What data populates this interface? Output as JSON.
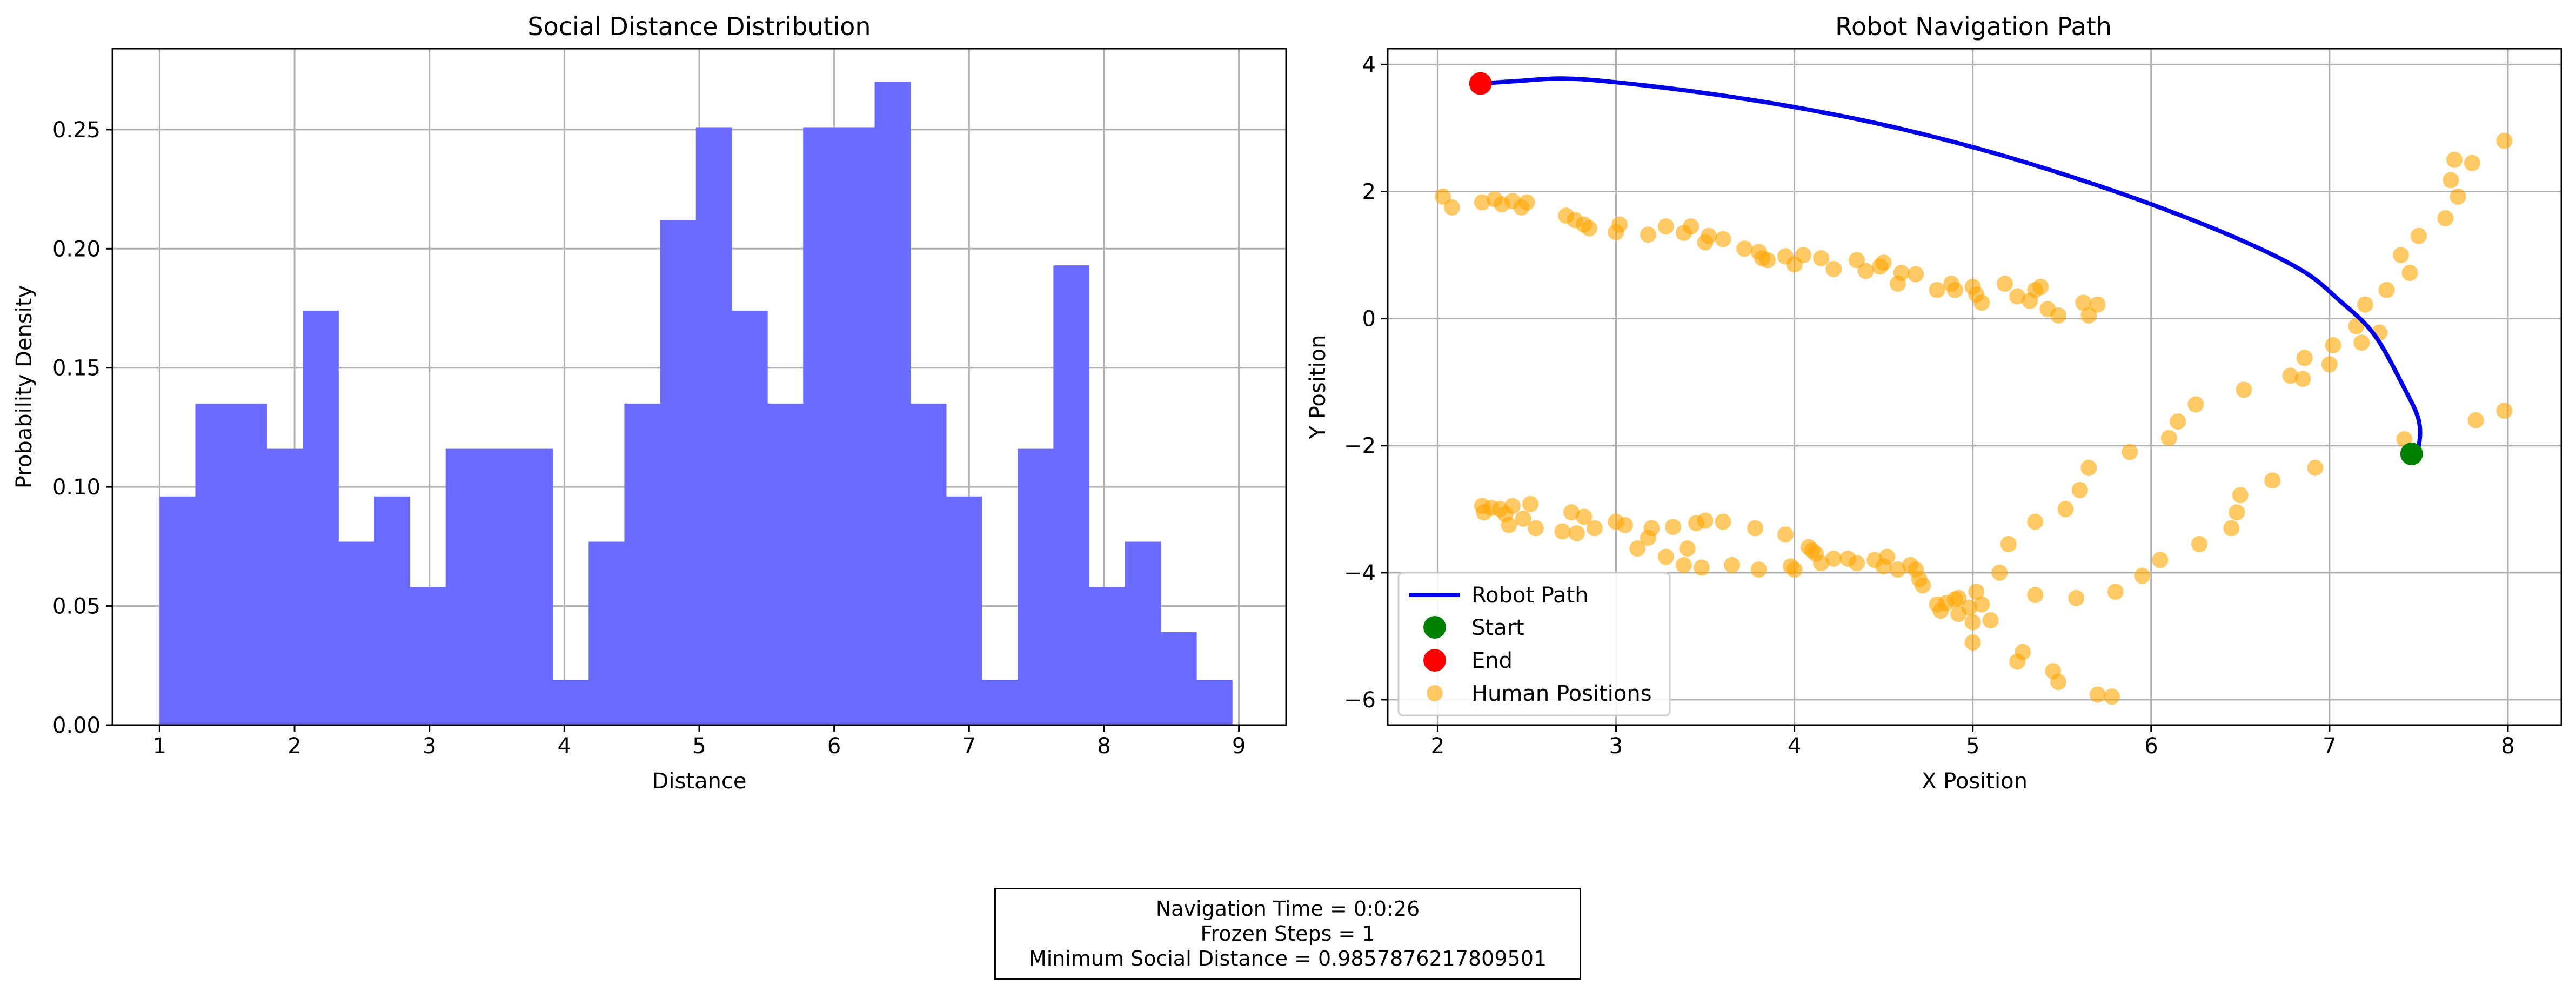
{
  "colors": {
    "hist": "#6a6aff",
    "path": "#0000e6",
    "start": "#008000",
    "end": "#ff0000",
    "human": "#ffa500",
    "grid": "#b0b0b0"
  },
  "info": {
    "navigation_time": "Navigation Time = 0:0:26",
    "frozen_steps": "Frozen Steps = 1",
    "min_social_distance": "Minimum Social Distance = 0.9857876217809501"
  },
  "chart_data": [
    {
      "type": "bar",
      "title": "Social Distance Distribution",
      "xlabel": "Distance",
      "ylabel": "Probability Density",
      "xlim": [
        0.65,
        9.35
      ],
      "ylim": [
        0,
        0.284
      ],
      "xticks": [
        1,
        2,
        3,
        4,
        5,
        6,
        7,
        8,
        9
      ],
      "xtick_labels": [
        "1",
        "2",
        "3",
        "4",
        "5",
        "6",
        "7",
        "8",
        "9"
      ],
      "yticks": [
        0,
        0.05,
        0.1,
        0.15,
        0.2,
        0.25
      ],
      "ytick_labels": [
        "0.00",
        "0.05",
        "0.10",
        "0.15",
        "0.20",
        "0.25"
      ],
      "grid": true,
      "bin_edges": [
        1.0,
        1.265,
        1.53,
        1.795,
        2.06,
        2.325,
        2.59,
        2.855,
        3.12,
        3.385,
        3.65,
        3.915,
        4.18,
        4.445,
        4.71,
        4.975,
        5.24,
        5.505,
        5.77,
        6.035,
        6.3,
        6.565,
        6.83,
        7.095,
        7.36,
        7.625,
        7.89,
        8.155,
        8.42,
        8.685,
        8.95
      ],
      "values": [
        0.096,
        0.135,
        0.135,
        0.116,
        0.174,
        0.077,
        0.096,
        0.058,
        0.116,
        0.116,
        0.116,
        0.019,
        0.077,
        0.135,
        0.212,
        0.251,
        0.174,
        0.135,
        0.251,
        0.251,
        0.27,
        0.135,
        0.096,
        0.019,
        0.116,
        0.193,
        0.058,
        0.077,
        0.039,
        0.019
      ]
    },
    {
      "type": "scatter",
      "title": "Robot Navigation Path",
      "xlabel": "X Position",
      "ylabel": "Y Position",
      "xlim": [
        1.72,
        8.3
      ],
      "ylim": [
        -6.4,
        4.25
      ],
      "xticks": [
        2,
        3,
        4,
        5,
        6,
        7,
        8
      ],
      "xtick_labels": [
        "2",
        "3",
        "4",
        "5",
        "6",
        "7",
        "8"
      ],
      "yticks": [
        -6,
        -4,
        -2,
        0,
        2,
        4
      ],
      "ytick_labels": [
        "−6",
        "−4",
        "−2",
        "0",
        "2",
        "4"
      ],
      "grid": true,
      "legend_position": "lower-left",
      "legend": [
        "Robot Path",
        "Start",
        "End",
        "Human Positions"
      ],
      "robot_path": [
        [
          2.24,
          3.7
        ],
        [
          2.45,
          3.74
        ],
        [
          2.7,
          3.78
        ],
        [
          3.0,
          3.72
        ],
        [
          3.5,
          3.55
        ],
        [
          4.0,
          3.33
        ],
        [
          4.5,
          3.05
        ],
        [
          5.0,
          2.7
        ],
        [
          5.5,
          2.28
        ],
        [
          6.0,
          1.8
        ],
        [
          6.5,
          1.24
        ],
        [
          6.85,
          0.75
        ],
        [
          7.05,
          0.3
        ],
        [
          7.25,
          -0.25
        ],
        [
          7.42,
          -1.1
        ],
        [
          7.5,
          -1.6
        ],
        [
          7.5,
          -2.0
        ],
        [
          7.46,
          -2.13
        ]
      ],
      "start": [
        7.46,
        -2.13
      ],
      "end": [
        2.24,
        3.7
      ],
      "human_positions": [
        [
          2.03,
          1.92
        ],
        [
          2.08,
          1.75
        ],
        [
          2.25,
          1.83
        ],
        [
          2.32,
          1.88
        ],
        [
          2.36,
          1.8
        ],
        [
          2.42,
          1.85
        ],
        [
          2.47,
          1.75
        ],
        [
          2.5,
          1.83
        ],
        [
          2.72,
          1.62
        ],
        [
          2.77,
          1.55
        ],
        [
          2.82,
          1.48
        ],
        [
          2.85,
          1.42
        ],
        [
          3.0,
          1.36
        ],
        [
          3.02,
          1.48
        ],
        [
          3.18,
          1.32
        ],
        [
          3.28,
          1.45
        ],
        [
          3.38,
          1.35
        ],
        [
          3.42,
          1.45
        ],
        [
          3.5,
          1.2
        ],
        [
          3.52,
          1.3
        ],
        [
          3.6,
          1.25
        ],
        [
          3.72,
          1.1
        ],
        [
          3.8,
          1.05
        ],
        [
          3.82,
          0.95
        ],
        [
          3.85,
          0.92
        ],
        [
          3.95,
          0.98
        ],
        [
          4.0,
          0.85
        ],
        [
          4.05,
          1.0
        ],
        [
          4.15,
          0.95
        ],
        [
          4.22,
          0.78
        ],
        [
          4.35,
          0.92
        ],
        [
          4.4,
          0.75
        ],
        [
          4.48,
          0.82
        ],
        [
          4.5,
          0.88
        ],
        [
          4.58,
          0.55
        ],
        [
          4.6,
          0.72
        ],
        [
          4.68,
          0.7
        ],
        [
          4.8,
          0.45
        ],
        [
          4.88,
          0.55
        ],
        [
          4.9,
          0.45
        ],
        [
          5.0,
          0.5
        ],
        [
          5.02,
          0.38
        ],
        [
          5.05,
          0.25
        ],
        [
          5.18,
          0.55
        ],
        [
          5.25,
          0.35
        ],
        [
          5.32,
          0.28
        ],
        [
          5.35,
          0.45
        ],
        [
          5.38,
          0.5
        ],
        [
          5.42,
          0.15
        ],
        [
          5.48,
          0.05
        ],
        [
          5.62,
          0.25
        ],
        [
          5.65,
          0.05
        ],
        [
          5.7,
          0.22
        ],
        [
          2.25,
          -2.95
        ],
        [
          2.26,
          -3.05
        ],
        [
          2.3,
          -2.98
        ],
        [
          2.35,
          -3.0
        ],
        [
          2.38,
          -3.08
        ],
        [
          2.4,
          -3.25
        ],
        [
          2.42,
          -2.95
        ],
        [
          2.48,
          -3.15
        ],
        [
          2.52,
          -2.92
        ],
        [
          2.55,
          -3.3
        ],
        [
          2.7,
          -3.35
        ],
        [
          2.75,
          -3.05
        ],
        [
          2.78,
          -3.38
        ],
        [
          2.82,
          -3.12
        ],
        [
          2.88,
          -3.3
        ],
        [
          3.0,
          -3.2
        ],
        [
          3.05,
          -3.25
        ],
        [
          3.12,
          -3.62
        ],
        [
          3.18,
          -3.45
        ],
        [
          3.2,
          -3.3
        ],
        [
          3.28,
          -3.75
        ],
        [
          3.32,
          -3.28
        ],
        [
          3.38,
          -3.88
        ],
        [
          3.4,
          -3.62
        ],
        [
          3.45,
          -3.22
        ],
        [
          3.48,
          -3.92
        ],
        [
          3.5,
          -3.18
        ],
        [
          3.6,
          -3.2
        ],
        [
          3.65,
          -3.88
        ],
        [
          3.78,
          -3.3
        ],
        [
          3.8,
          -3.95
        ],
        [
          3.95,
          -3.4
        ],
        [
          3.98,
          -3.9
        ],
        [
          4.0,
          -3.95
        ],
        [
          4.08,
          -3.6
        ],
        [
          4.12,
          -3.7
        ],
        [
          4.15,
          -3.85
        ],
        [
          4.22,
          -3.78
        ],
        [
          4.3,
          -3.78
        ],
        [
          4.35,
          -3.85
        ],
        [
          4.45,
          -3.8
        ],
        [
          4.5,
          -3.9
        ],
        [
          4.52,
          -3.75
        ],
        [
          4.58,
          -3.95
        ],
        [
          4.65,
          -3.88
        ],
        [
          4.68,
          -3.95
        ],
        [
          4.7,
          -4.1
        ],
        [
          4.72,
          -4.2
        ],
        [
          4.8,
          -4.5
        ],
        [
          4.82,
          -4.6
        ],
        [
          4.85,
          -4.48
        ],
        [
          4.9,
          -4.42
        ],
        [
          4.92,
          -4.65
        ],
        [
          4.98,
          -4.55
        ],
        [
          5.0,
          -4.78
        ],
        [
          5.02,
          -4.3
        ],
        [
          5.05,
          -4.5
        ],
        [
          5.1,
          -4.75
        ],
        [
          5.15,
          -4.0
        ],
        [
          5.2,
          -3.55
        ],
        [
          5.25,
          -5.4
        ],
        [
          5.28,
          -5.25
        ],
        [
          5.35,
          -3.2
        ],
        [
          5.35,
          -4.35
        ],
        [
          5.45,
          -5.55
        ],
        [
          5.48,
          -5.72
        ],
        [
          5.52,
          -3.0
        ],
        [
          5.58,
          -4.4
        ],
        [
          5.6,
          -2.7
        ],
        [
          5.65,
          -2.35
        ],
        [
          5.7,
          -5.92
        ],
        [
          5.78,
          -5.95
        ],
        [
          5.8,
          -4.3
        ],
        [
          5.88,
          -2.1
        ],
        [
          5.95,
          -4.05
        ],
        [
          6.05,
          -3.8
        ],
        [
          6.1,
          -1.88
        ],
        [
          6.15,
          -1.62
        ],
        [
          6.25,
          -1.35
        ],
        [
          6.27,
          -3.55
        ],
        [
          6.45,
          -3.3
        ],
        [
          6.48,
          -3.05
        ],
        [
          6.5,
          -2.78
        ],
        [
          6.52,
          -1.12
        ],
        [
          6.68,
          -2.55
        ],
        [
          6.78,
          -0.9
        ],
        [
          6.85,
          -0.95
        ],
        [
          6.86,
          -0.62
        ],
        [
          6.92,
          -2.35
        ],
        [
          7.0,
          -0.72
        ],
        [
          7.02,
          -0.42
        ],
        [
          7.15,
          -0.12
        ],
        [
          7.18,
          -0.38
        ],
        [
          7.2,
          0.22
        ],
        [
          7.28,
          -0.22
        ],
        [
          7.32,
          0.45
        ],
        [
          7.4,
          1.0
        ],
        [
          7.42,
          -1.9
        ],
        [
          7.45,
          0.72
        ],
        [
          7.5,
          1.3
        ],
        [
          7.65,
          1.58
        ],
        [
          7.68,
          2.18
        ],
        [
          7.7,
          2.5
        ],
        [
          7.72,
          1.92
        ],
        [
          7.8,
          2.45
        ],
        [
          7.82,
          -1.6
        ],
        [
          7.98,
          2.8
        ],
        [
          7.98,
          -1.45
        ],
        [
          5.0,
          -5.1
        ],
        [
          4.92,
          -4.4
        ],
        [
          4.1,
          -3.65
        ]
      ]
    }
  ]
}
